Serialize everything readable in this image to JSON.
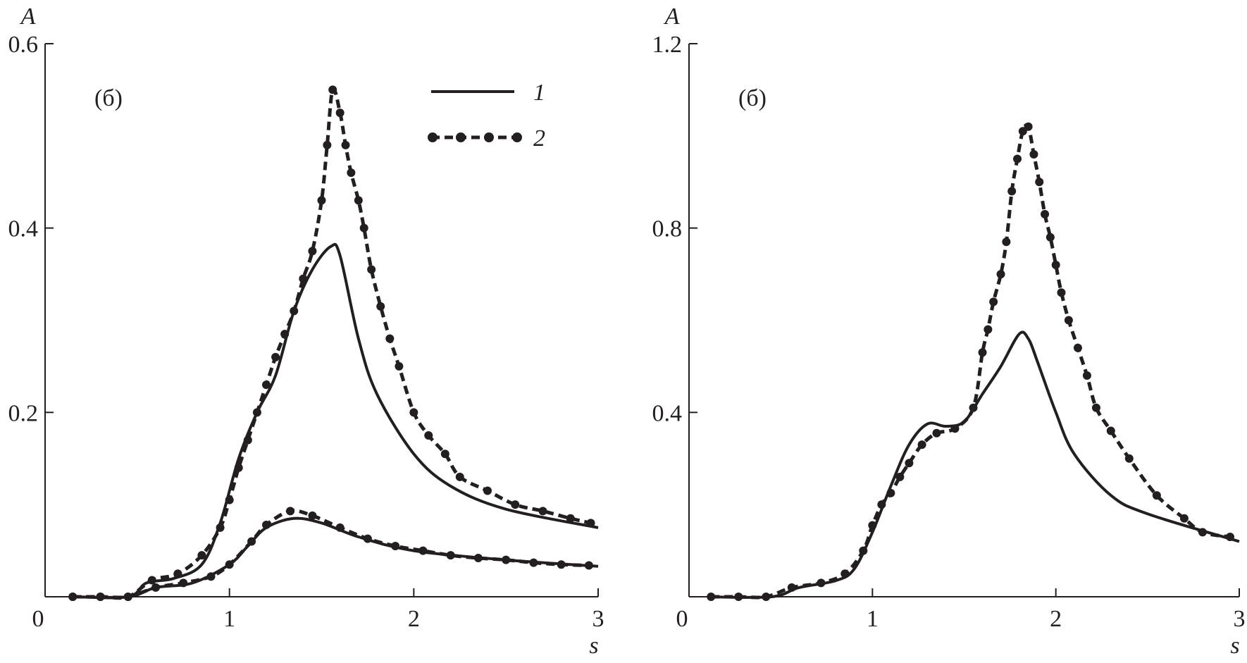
{
  "chart_data": [
    {
      "type": "line",
      "panel_label": "(б)",
      "ylabel": "A",
      "xlabel": "s",
      "xlim": [
        0,
        3
      ],
      "ylim": [
        0,
        0.6
      ],
      "xticks": [
        "0",
        "1",
        "2",
        "3"
      ],
      "xtick_values": [
        0,
        1,
        2,
        3
      ],
      "yticks": [
        "0.2",
        "0.4",
        "0.6"
      ],
      "ytick_values": [
        0.2,
        0.4,
        0.6
      ],
      "grid": false,
      "legend": {
        "placement": "top-right",
        "entries": [
          "1",
          "2"
        ]
      },
      "series": [
        {
          "name": "1",
          "style": "solid",
          "x": [
            0.15,
            0.45,
            0.55,
            0.7,
            0.85,
            0.95,
            1.05,
            1.15,
            1.25,
            1.35,
            1.45,
            1.55,
            1.6,
            1.7,
            1.8,
            2.0,
            2.2,
            2.5,
            3.0
          ],
          "y": [
            0,
            0,
            0.015,
            0.02,
            0.035,
            0.08,
            0.15,
            0.2,
            0.24,
            0.31,
            0.355,
            0.38,
            0.37,
            0.28,
            0.22,
            0.155,
            0.12,
            0.095,
            0.075
          ]
        },
        {
          "name": "2",
          "style": "dashed-dots",
          "x": [
            0.15,
            0.3,
            0.45,
            0.58,
            0.72,
            0.85,
            0.95,
            1.0,
            1.05,
            1.1,
            1.15,
            1.2,
            1.25,
            1.3,
            1.35,
            1.4,
            1.45,
            1.5,
            1.53,
            1.56,
            1.6,
            1.63,
            1.66,
            1.7,
            1.73,
            1.77,
            1.82,
            1.87,
            1.92,
            2.0,
            2.08,
            2.17,
            2.25,
            2.4,
            2.55,
            2.7,
            2.85,
            2.96
          ],
          "y": [
            0,
            0,
            0,
            0.018,
            0.025,
            0.045,
            0.075,
            0.105,
            0.14,
            0.17,
            0.2,
            0.23,
            0.26,
            0.285,
            0.31,
            0.345,
            0.375,
            0.43,
            0.49,
            0.55,
            0.525,
            0.49,
            0.46,
            0.43,
            0.4,
            0.355,
            0.315,
            0.28,
            0.25,
            0.2,
            0.175,
            0.155,
            0.13,
            0.115,
            0.1,
            0.093,
            0.085,
            0.08
          ]
        },
        {
          "name": "1",
          "style": "solid",
          "x": [
            0.15,
            0.45,
            0.6,
            0.8,
            1.0,
            1.1,
            1.2,
            1.35,
            1.5,
            1.7,
            2.0,
            2.5,
            3.0
          ],
          "y": [
            0,
            0,
            0.01,
            0.015,
            0.035,
            0.055,
            0.075,
            0.085,
            0.08,
            0.065,
            0.05,
            0.04,
            0.033
          ]
        },
        {
          "name": "2",
          "style": "dashed-dots",
          "x": [
            0.15,
            0.3,
            0.45,
            0.6,
            0.75,
            0.9,
            1.0,
            1.12,
            1.2,
            1.33,
            1.45,
            1.6,
            1.75,
            1.9,
            2.05,
            2.2,
            2.35,
            2.5,
            2.65,
            2.8,
            2.95
          ],
          "y": [
            0,
            0,
            0,
            0.01,
            0.015,
            0.022,
            0.035,
            0.06,
            0.078,
            0.093,
            0.088,
            0.075,
            0.063,
            0.055,
            0.05,
            0.045,
            0.042,
            0.04,
            0.037,
            0.035,
            0.034
          ]
        }
      ]
    },
    {
      "type": "line",
      "panel_label": "(б)",
      "ylabel": "A",
      "xlabel": "s",
      "xlim": [
        0,
        3
      ],
      "ylim": [
        0,
        1.2
      ],
      "xticks": [
        "0",
        "1",
        "2",
        "3"
      ],
      "xtick_values": [
        0,
        1,
        2,
        3
      ],
      "yticks": [
        "0.4",
        "0.8",
        "1.2"
      ],
      "ytick_values": [
        0.4,
        0.8,
        1.2
      ],
      "grid": false,
      "series": [
        {
          "name": "1",
          "style": "solid",
          "x": [
            0.1,
            0.45,
            0.6,
            0.8,
            0.9,
            1.0,
            1.1,
            1.2,
            1.3,
            1.4,
            1.5,
            1.6,
            1.7,
            1.8,
            1.85,
            1.9,
            2.0,
            2.1,
            2.3,
            2.5,
            3.0
          ],
          "y": [
            0,
            0,
            0.02,
            0.035,
            0.06,
            0.14,
            0.24,
            0.33,
            0.375,
            0.37,
            0.38,
            0.44,
            0.5,
            0.57,
            0.56,
            0.51,
            0.4,
            0.31,
            0.22,
            0.18,
            0.12
          ]
        },
        {
          "name": "2",
          "style": "dashed-dots",
          "x": [
            0.12,
            0.27,
            0.42,
            0.56,
            0.72,
            0.85,
            0.95,
            1.0,
            1.05,
            1.1,
            1.15,
            1.2,
            1.27,
            1.35,
            1.45,
            1.55,
            1.6,
            1.63,
            1.66,
            1.7,
            1.73,
            1.76,
            1.79,
            1.82,
            1.85,
            1.88,
            1.91,
            1.94,
            1.97,
            2.0,
            2.03,
            2.07,
            2.12,
            2.17,
            2.22,
            2.3,
            2.4,
            2.55,
            2.7,
            2.8,
            2.95
          ],
          "y": [
            0,
            0,
            0,
            0.02,
            0.03,
            0.05,
            0.1,
            0.155,
            0.2,
            0.225,
            0.26,
            0.29,
            0.33,
            0.355,
            0.365,
            0.41,
            0.53,
            0.58,
            0.64,
            0.7,
            0.77,
            0.88,
            0.95,
            1.01,
            1.02,
            0.96,
            0.9,
            0.83,
            0.78,
            0.72,
            0.66,
            0.6,
            0.54,
            0.48,
            0.41,
            0.36,
            0.3,
            0.22,
            0.17,
            0.14,
            0.13
          ]
        }
      ]
    }
  ]
}
